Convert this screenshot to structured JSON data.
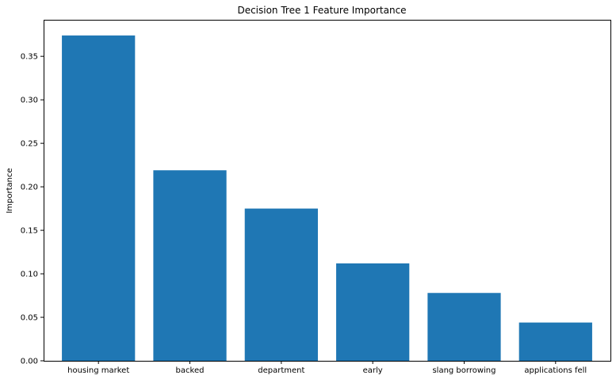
{
  "chart_data": {
    "type": "bar",
    "title": "Decision Tree 1 Feature Importance",
    "xlabel": "",
    "ylabel": "Importance",
    "categories": [
      "housing market",
      "backed",
      "department",
      "early",
      "slang borrowing",
      "applications fell"
    ],
    "values": [
      0.374,
      0.219,
      0.175,
      0.112,
      0.078,
      0.044
    ],
    "ylim": [
      0,
      0.392
    ],
    "yticks": [
      0.0,
      0.05,
      0.1,
      0.15,
      0.2,
      0.25,
      0.3,
      0.35
    ],
    "ytick_labels": [
      "0.00",
      "0.05",
      "0.10",
      "0.15",
      "0.20",
      "0.25",
      "0.30",
      "0.35"
    ],
    "bar_color": "#1f77b4",
    "grid": false,
    "legend": "none"
  }
}
